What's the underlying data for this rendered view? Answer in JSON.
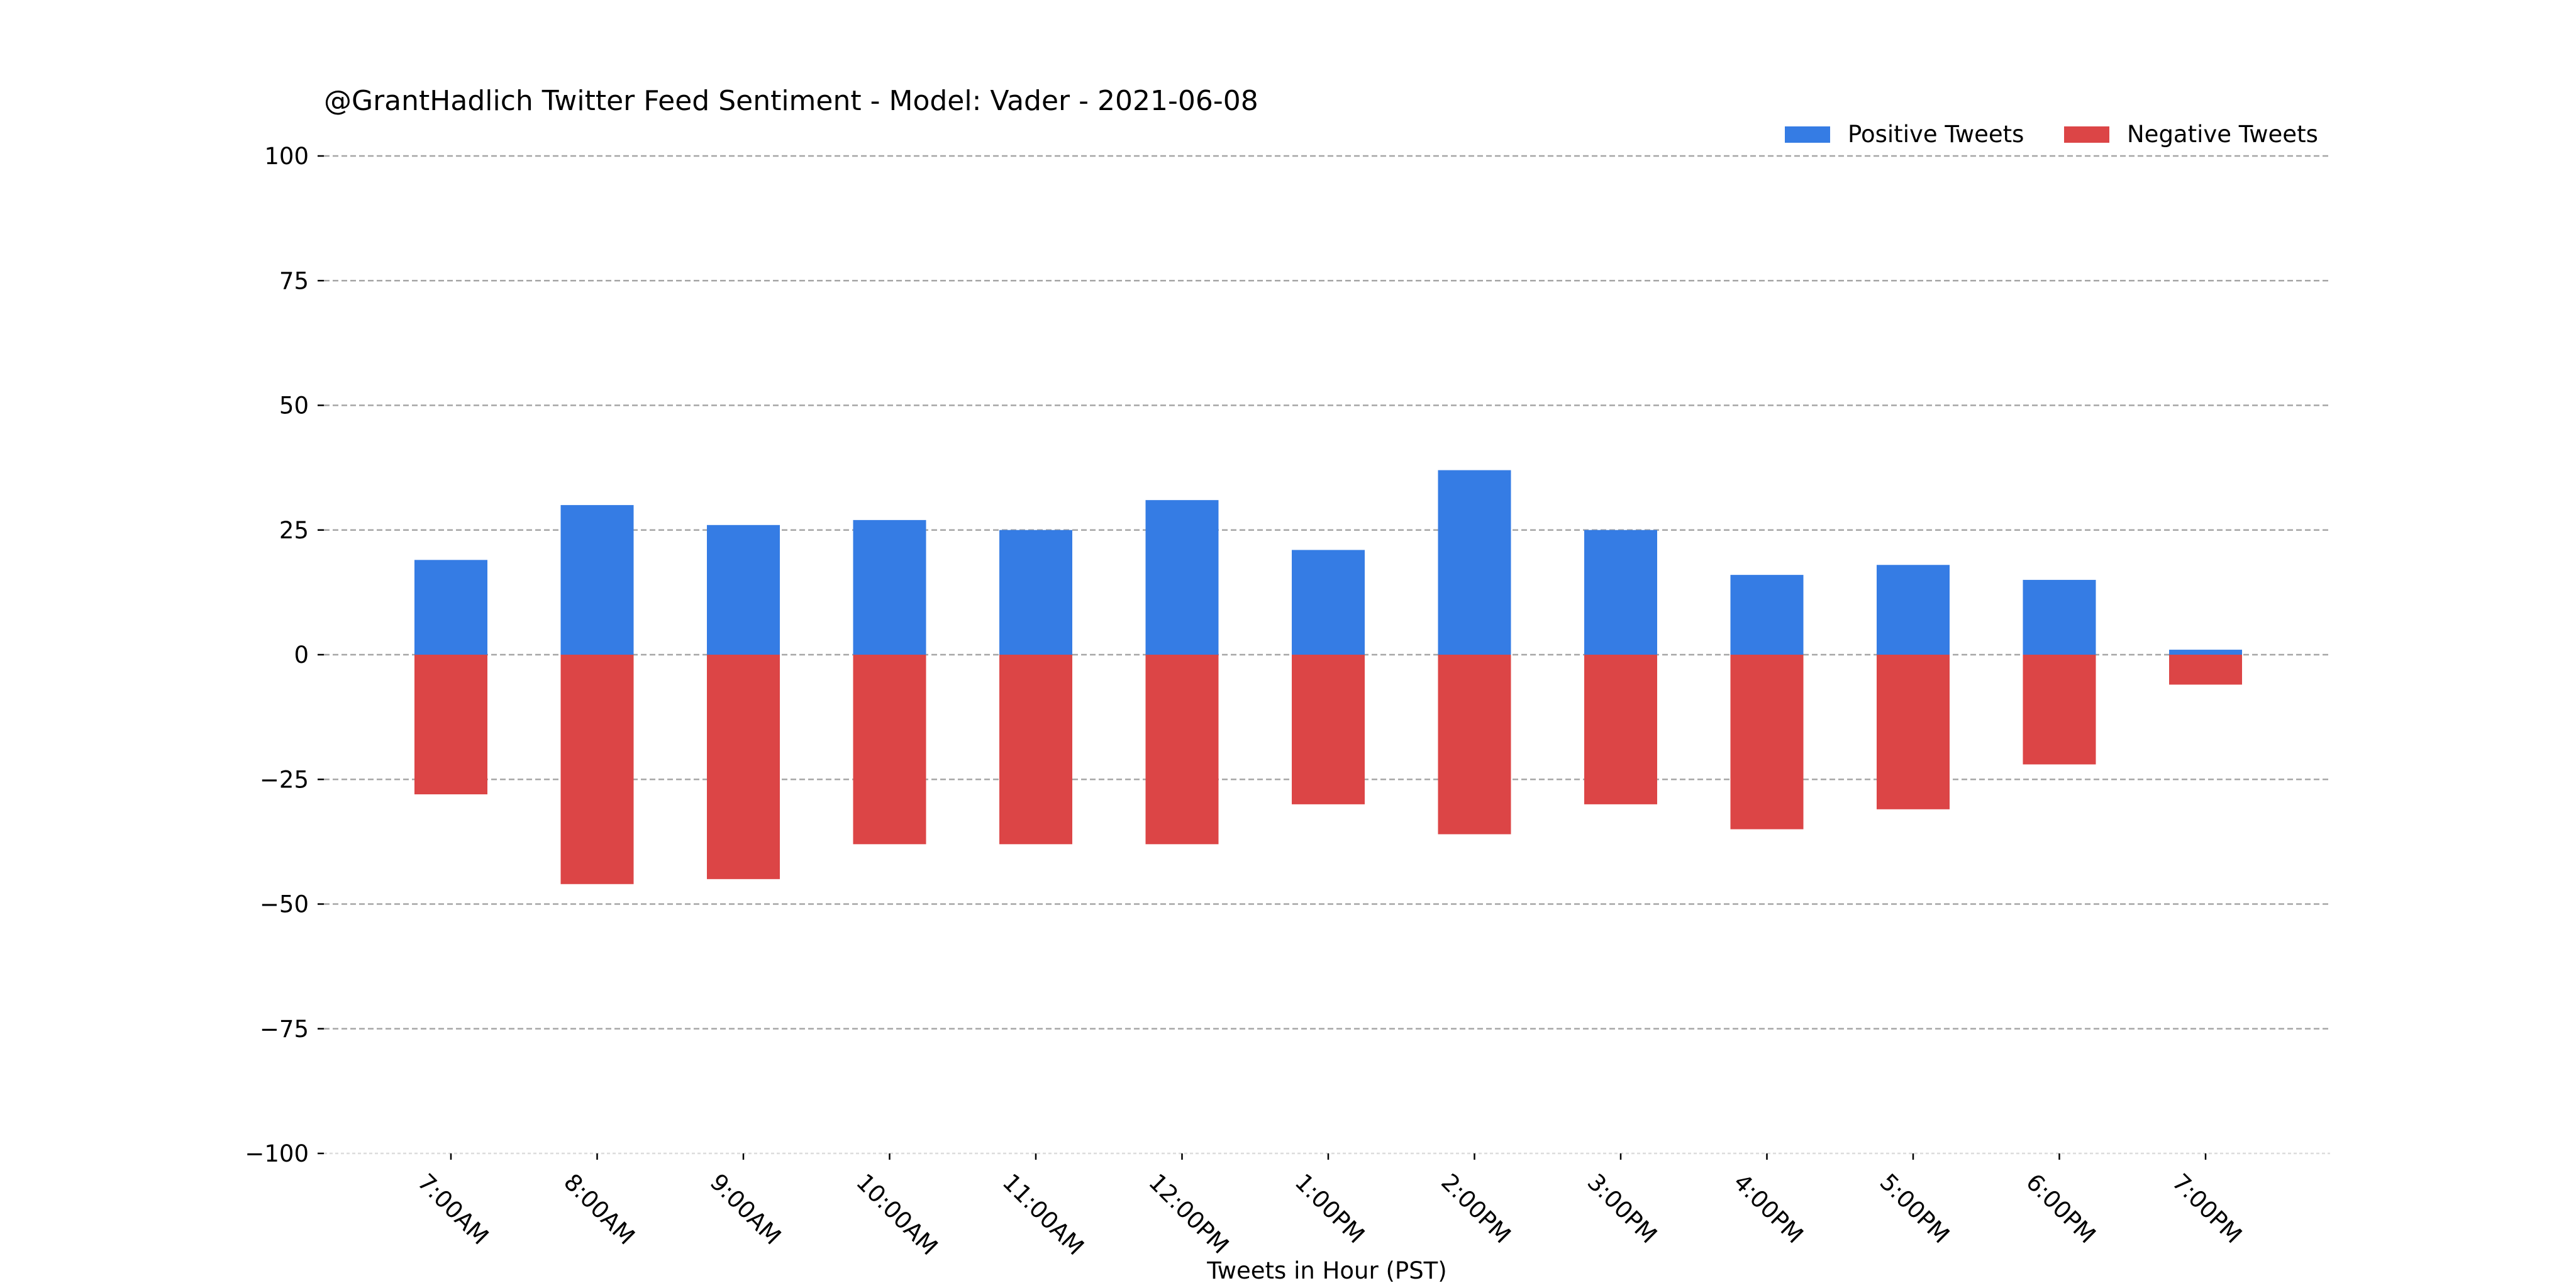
{
  "chart_data": {
    "type": "bar",
    "title": "@GrantHadlich Twitter Feed Sentiment - Model: Vader - 2021-06-08",
    "xlabel": "Tweets in Hour (PST)",
    "ylabel": "",
    "ylim": [
      -100,
      100
    ],
    "yticks": [
      100,
      75,
      50,
      25,
      0,
      -25,
      -50,
      -75,
      -100
    ],
    "ytick_labels": [
      "100",
      "75",
      "50",
      "25",
      "0",
      "−25",
      "−50",
      "−75",
      "−100"
    ],
    "grid": true,
    "legend_position": "top-right",
    "categories": [
      "7:00AM",
      "8:00AM",
      "9:00AM",
      "10:00AM",
      "11:00AM",
      "12:00PM",
      "1:00PM",
      "2:00PM",
      "3:00PM",
      "4:00PM",
      "5:00PM",
      "6:00PM",
      "7:00PM"
    ],
    "series": [
      {
        "name": "Positive Tweets",
        "color": "#357ce4",
        "values": [
          19,
          30,
          26,
          27,
          25,
          31,
          21,
          37,
          25,
          16,
          18,
          15,
          1
        ]
      },
      {
        "name": "Negative Tweets",
        "color": "#dc4546",
        "values": [
          -28,
          -46,
          -45,
          -38,
          -38,
          -38,
          -30,
          -36,
          -30,
          -35,
          -31,
          -22,
          -6
        ]
      }
    ]
  }
}
